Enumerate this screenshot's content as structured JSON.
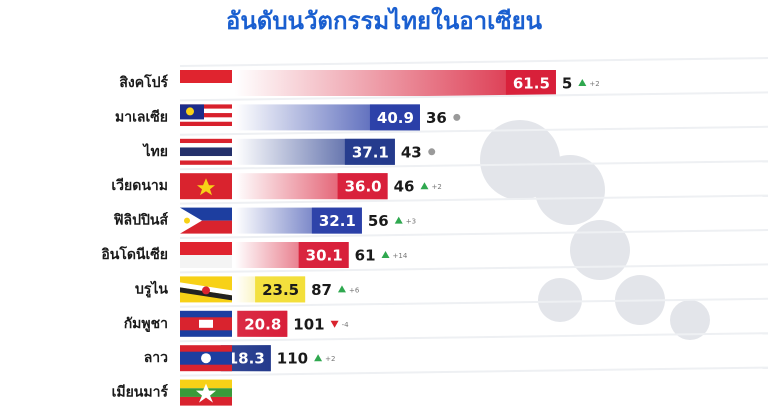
{
  "chart_data": {
    "type": "bar",
    "title": "อันดับนวัตกรรมไทยในอาเซียน",
    "categories": [
      "สิงคโปร์",
      "มาเลเซีย",
      "ไทย",
      "เวียดนาม",
      "ฟิลิปปินส์",
      "อินโดนีเซีย",
      "บรูไน",
      "กัมพูชา",
      "ลาว",
      "เมียนมาร์"
    ],
    "values": [
      61.5,
      40.9,
      37.1,
      36.0,
      32.1,
      30.1,
      23.5,
      20.8,
      18.3,
      null
    ],
    "value_labels": [
      "61.5",
      "40.9",
      "37.1",
      "36.0",
      "32.1",
      "30.1",
      "23.5",
      "20.8",
      "18.3",
      null
    ],
    "ranks": [
      5,
      36,
      43,
      46,
      56,
      61,
      87,
      101,
      110,
      null
    ],
    "rank_changes": [
      "+2",
      null,
      null,
      "+2",
      "+3",
      "+14",
      "+6",
      "-4",
      "+2",
      null
    ],
    "colors": [
      "#d8203a",
      "#2a3fa8",
      "#243a8c",
      "#d8203a",
      "#2a3fa8",
      "#d8203a",
      "#f2de3a",
      "#d8203a",
      "#243a8c",
      null
    ]
  }
}
